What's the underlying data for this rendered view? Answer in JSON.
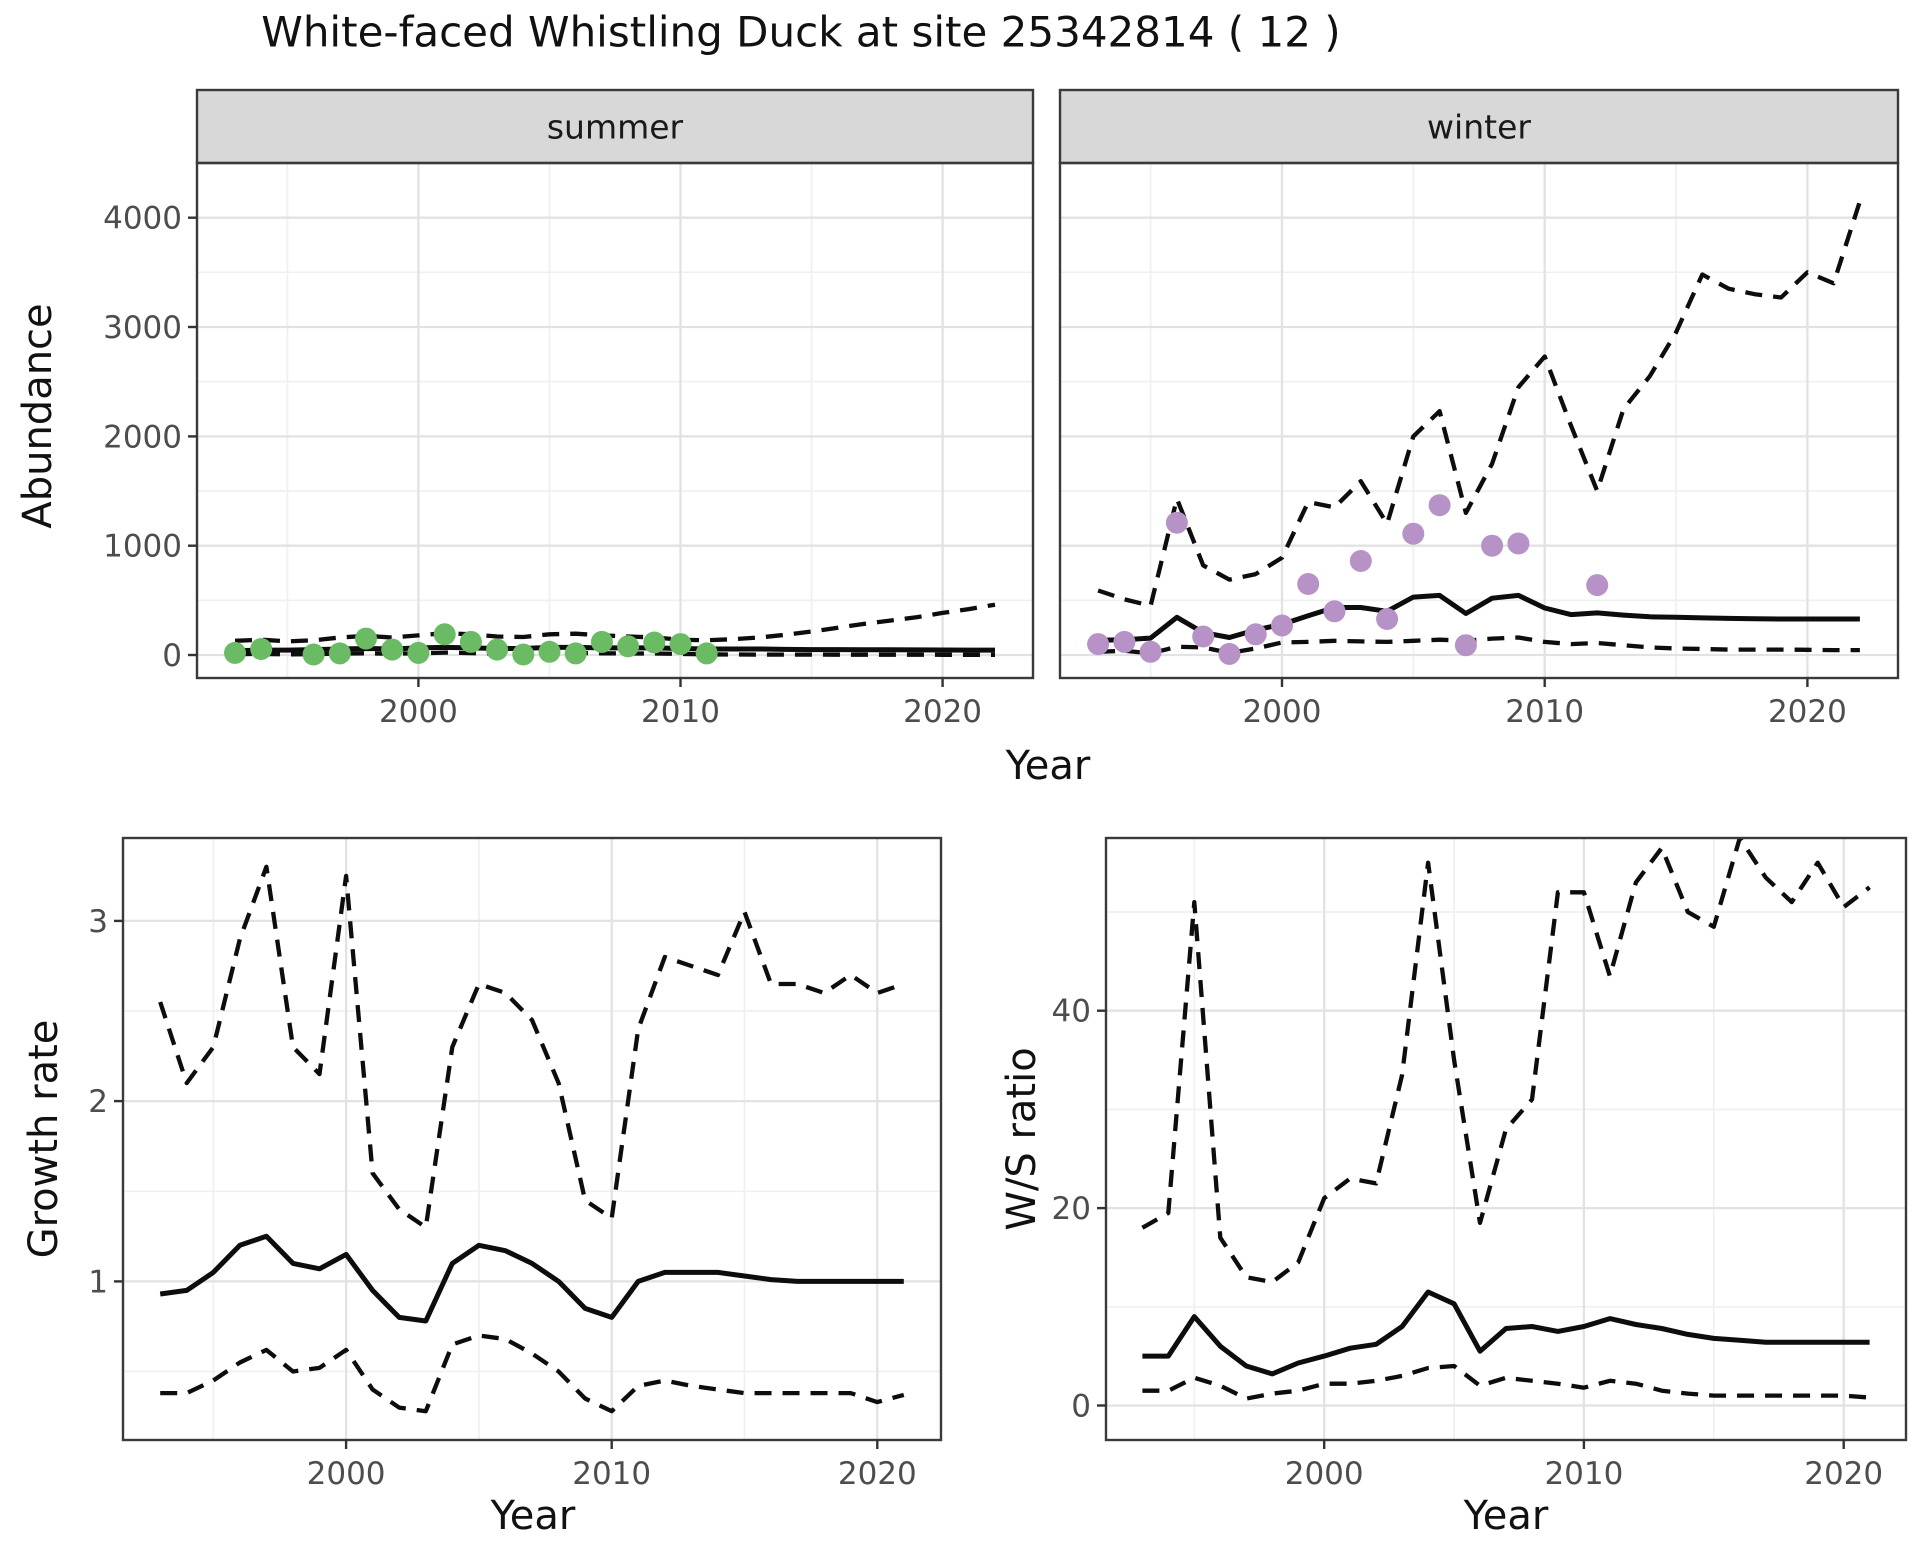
{
  "title": "White-faced Whistling Duck at site 25342814 ( 12 )",
  "colors": {
    "line": "#0d0d0d",
    "summer_points": "#6abb64",
    "winter_points": "#b692c7",
    "grid_major": "#e2e2e2",
    "grid_minor": "#f0f0f0",
    "strip_bg": "#d8d8d8",
    "border": "#3a3a3a",
    "tick_mark": "#333333",
    "tick_text": "#4d4d4d",
    "text": "#111111"
  },
  "chart_data": [
    {
      "type": "line",
      "title": "White-faced Whistling Duck at site 25342814 ( 12 )",
      "xlabel": "Year",
      "ylabel": "Abundance",
      "x_ticks": [
        2000,
        2010,
        2020
      ],
      "x_tick_labels": [
        "2000",
        "2010",
        "2020"
      ],
      "y_ticks": [
        0,
        1000,
        2000,
        3000,
        4000
      ],
      "y_tick_labels": [
        "0",
        "1000",
        "2000",
        "3000",
        "4000"
      ],
      "xlim": [
        1991.55,
        2023.45
      ],
      "ylim": [
        -210,
        4500
      ],
      "grid": true,
      "legend_position": "none",
      "facets": [
        {
          "label": "summer",
          "x": [
            1993,
            1994,
            1995,
            1996,
            1997,
            1998,
            1999,
            2000,
            2001,
            2002,
            2003,
            2004,
            2005,
            2006,
            2007,
            2008,
            2009,
            2010,
            2011,
            2012,
            2013,
            2014,
            2015,
            2016,
            2017,
            2018,
            2019,
            2020,
            2021,
            2022
          ],
          "series": [
            {
              "name": "median",
              "style": "solid",
              "values": [
                40,
                45,
                45,
                50,
                55,
                60,
                55,
                65,
                70,
                65,
                60,
                60,
                70,
                70,
                65,
                65,
                65,
                60,
                55,
                55,
                55,
                52,
                50,
                50,
                48,
                48,
                47,
                46,
                45,
                45
              ]
            },
            {
              "name": "upper_ci",
              "style": "dashed",
              "values": [
                130,
                140,
                125,
                135,
                160,
                175,
                160,
                180,
                200,
                190,
                170,
                165,
                190,
                195,
                180,
                170,
                160,
                140,
                135,
                145,
                160,
                185,
                215,
                250,
                285,
                315,
                345,
                385,
                420,
                460
              ]
            },
            {
              "name": "lower_ci",
              "style": "dashed",
              "values": [
                8,
                10,
                6,
                8,
                14,
                16,
                12,
                16,
                22,
                18,
                14,
                14,
                20,
                20,
                16,
                14,
                14,
                10,
                6,
                5,
                4,
                4,
                4,
                3,
                3,
                3,
                3,
                2,
                2,
                2
              ]
            }
          ],
          "points": {
            "name": "observed_counts",
            "color": "#6abb64",
            "x": [
              1993,
              1994,
              1996,
              1997,
              1998,
              1999,
              2000,
              2001,
              2002,
              2003,
              2004,
              2005,
              2006,
              2007,
              2008,
              2009,
              2010,
              2011
            ],
            "y": [
              20,
              55,
              5,
              15,
              150,
              50,
              20,
              190,
              120,
              50,
              5,
              30,
              15,
              120,
              80,
              115,
              100,
              15
            ]
          }
        },
        {
          "label": "winter",
          "x": [
            1993,
            1994,
            1995,
            1996,
            1997,
            1998,
            1999,
            2000,
            2001,
            2002,
            2003,
            2004,
            2005,
            2006,
            2007,
            2008,
            2009,
            2010,
            2011,
            2012,
            2013,
            2014,
            2015,
            2016,
            2017,
            2018,
            2019,
            2020,
            2021,
            2022
          ],
          "series": [
            {
              "name": "median",
              "style": "solid",
              "values": [
                135,
                140,
                155,
                345,
                205,
                160,
                230,
                280,
                360,
                435,
                435,
                400,
                530,
                545,
                380,
                520,
                545,
                430,
                370,
                385,
                365,
                350,
                345,
                340,
                335,
                332,
                330,
                330,
                330,
                330
              ]
            },
            {
              "name": "upper_ci",
              "style": "dashed",
              "values": [
                590,
                510,
                450,
                1430,
                820,
                690,
                740,
                890,
                1400,
                1350,
                1590,
                1200,
                2000,
                2230,
                1300,
                1750,
                2450,
                2730,
                2100,
                1500,
                2250,
                2550,
                2950,
                3480,
                3350,
                3300,
                3270,
                3500,
                3400,
                4150
              ]
            },
            {
              "name": "lower_ci",
              "style": "dashed",
              "values": [
                30,
                40,
                15,
                75,
                70,
                20,
                60,
                115,
                120,
                130,
                125,
                120,
                130,
                140,
                130,
                150,
                160,
                120,
                100,
                110,
                90,
                70,
                60,
                55,
                50,
                50,
                50,
                48,
                45,
                45
              ]
            }
          ],
          "points": {
            "name": "observed_counts",
            "color": "#b692c7",
            "x": [
              1993,
              1994,
              1995,
              1996,
              1997,
              1998,
              1999,
              2000,
              2001,
              2002,
              2003,
              2004,
              2005,
              2006,
              2007,
              2008,
              2009,
              2012
            ],
            "y": [
              100,
              120,
              30,
              1210,
              170,
              10,
              190,
              270,
              650,
              400,
              860,
              330,
              1110,
              1370,
              90,
              1000,
              1020,
              640
            ]
          }
        }
      ]
    },
    {
      "type": "line",
      "xlabel": "Year",
      "ylabel": "Growth rate",
      "x_ticks": [
        2000,
        2010,
        2020
      ],
      "x_tick_labels": [
        "2000",
        "2010",
        "2020"
      ],
      "y_ticks": [
        1,
        2,
        3
      ],
      "y_tick_labels": [
        "1",
        "2",
        "3"
      ],
      "xlim": [
        1991.6,
        2022.4
      ],
      "ylim": [
        0.12,
        3.46
      ],
      "grid": true,
      "legend_position": "none",
      "x": [
        1993,
        1994,
        1995,
        1996,
        1997,
        1998,
        1999,
        2000,
        2001,
        2002,
        2003,
        2004,
        2005,
        2006,
        2007,
        2008,
        2009,
        2010,
        2011,
        2012,
        2013,
        2014,
        2015,
        2016,
        2017,
        2018,
        2019,
        2020,
        2021
      ],
      "series": [
        {
          "name": "median",
          "style": "solid",
          "values": [
            0.93,
            0.95,
            1.05,
            1.2,
            1.25,
            1.1,
            1.07,
            1.15,
            0.95,
            0.8,
            0.78,
            1.1,
            1.2,
            1.17,
            1.1,
            1.0,
            0.85,
            0.8,
            1.0,
            1.05,
            1.05,
            1.05,
            1.03,
            1.01,
            1.0,
            1.0,
            1.0,
            1.0,
            1.0
          ]
        },
        {
          "name": "upper_ci",
          "style": "dashed",
          "values": [
            2.55,
            2.1,
            2.3,
            2.9,
            3.3,
            2.3,
            2.15,
            3.25,
            1.6,
            1.4,
            1.3,
            2.3,
            2.65,
            2.6,
            2.45,
            2.1,
            1.45,
            1.35,
            2.4,
            2.8,
            2.75,
            2.7,
            3.05,
            2.65,
            2.65,
            2.6,
            2.7,
            2.6,
            2.65
          ]
        },
        {
          "name": "lower_ci",
          "style": "dashed",
          "values": [
            0.38,
            0.38,
            0.45,
            0.55,
            0.62,
            0.5,
            0.52,
            0.62,
            0.4,
            0.3,
            0.28,
            0.65,
            0.7,
            0.68,
            0.6,
            0.5,
            0.35,
            0.28,
            0.42,
            0.45,
            0.42,
            0.4,
            0.38,
            0.38,
            0.38,
            0.38,
            0.38,
            0.33,
            0.37
          ]
        }
      ]
    },
    {
      "type": "line",
      "xlabel": "Year",
      "ylabel": "W/S ratio",
      "x_ticks": [
        2000,
        2010,
        2020
      ],
      "x_tick_labels": [
        "2000",
        "2010",
        "2020"
      ],
      "y_ticks": [
        0,
        20,
        40
      ],
      "y_tick_labels": [
        "0",
        "20",
        "40"
      ],
      "xlim": [
        1991.6,
        2022.4
      ],
      "ylim": [
        -3.5,
        57.5
      ],
      "grid": true,
      "legend_position": "none",
      "x": [
        1993,
        1994,
        1995,
        1996,
        1997,
        1998,
        1999,
        2000,
        2001,
        2002,
        2003,
        2004,
        2005,
        2006,
        2007,
        2008,
        2009,
        2010,
        2011,
        2012,
        2013,
        2014,
        2015,
        2016,
        2017,
        2018,
        2019,
        2020,
        2021
      ],
      "series": [
        {
          "name": "median",
          "style": "solid",
          "values": [
            5,
            5,
            9,
            6,
            4,
            3.2,
            4.3,
            5,
            5.8,
            6.2,
            8,
            11.5,
            10.3,
            5.5,
            7.8,
            8,
            7.5,
            8,
            8.8,
            8.2,
            7.8,
            7.2,
            6.8,
            6.6,
            6.4,
            6.4,
            6.4,
            6.4,
            6.4
          ]
        },
        {
          "name": "upper_ci",
          "style": "dashed",
          "values": [
            18,
            19.5,
            51,
            17,
            13,
            12.5,
            14.5,
            21,
            23,
            22.5,
            33.5,
            55,
            35,
            18.5,
            28,
            31,
            52,
            52,
            43.5,
            53,
            56.5,
            50,
            48.5,
            57.5,
            53.5,
            51,
            55,
            50.5,
            52.5
          ]
        },
        {
          "name": "lower_ci",
          "style": "dashed",
          "values": [
            1.5,
            1.5,
            2.8,
            2,
            0.7,
            1.2,
            1.5,
            2.2,
            2.2,
            2.5,
            3,
            3.8,
            4,
            2,
            2.8,
            2.5,
            2.2,
            1.8,
            2.5,
            2.2,
            1.5,
            1.2,
            1,
            1,
            1,
            1,
            1,
            1,
            0.8
          ]
        }
      ]
    }
  ]
}
